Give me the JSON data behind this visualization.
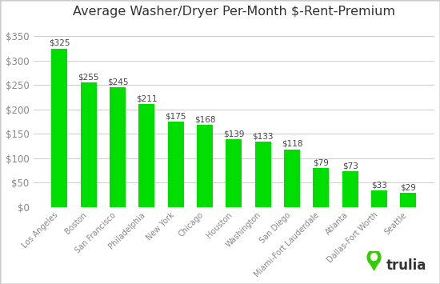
{
  "categories": [
    "Los Angeles",
    "Boston",
    "San Francisco",
    "Philadelphia",
    "New York",
    "Chicago",
    "Houston",
    "Washington",
    "San Diego",
    "Miami-Fort Lauderdale",
    "Atlanta",
    "Dallas-Fort Worth",
    "Seattle"
  ],
  "values": [
    325,
    255,
    245,
    211,
    175,
    168,
    139,
    133,
    118,
    79,
    73,
    33,
    29
  ],
  "bar_color": "#00dd00",
  "title": "Average Washer/Dryer Per-Month $-Rent-Premium",
  "ylim": [
    0,
    375
  ],
  "yticks": [
    0,
    50,
    100,
    150,
    200,
    250,
    300,
    350
  ],
  "ytick_labels": [
    "$0",
    "$50",
    "$100",
    "$150",
    "$200",
    "$250",
    "$300",
    "$350"
  ],
  "title_fontsize": 11.5,
  "label_fontsize": 7.0,
  "tick_fontsize": 8.5,
  "bar_label_fontsize": 7.5,
  "background_color": "#ffffff",
  "grid_color": "#cccccc",
  "bar_label_color": "#444444",
  "tick_color": "#888888",
  "trulia_text": "trulia",
  "trulia_text_color": "#333333",
  "trulia_green": "#33cc00",
  "border_color": "#cccccc"
}
